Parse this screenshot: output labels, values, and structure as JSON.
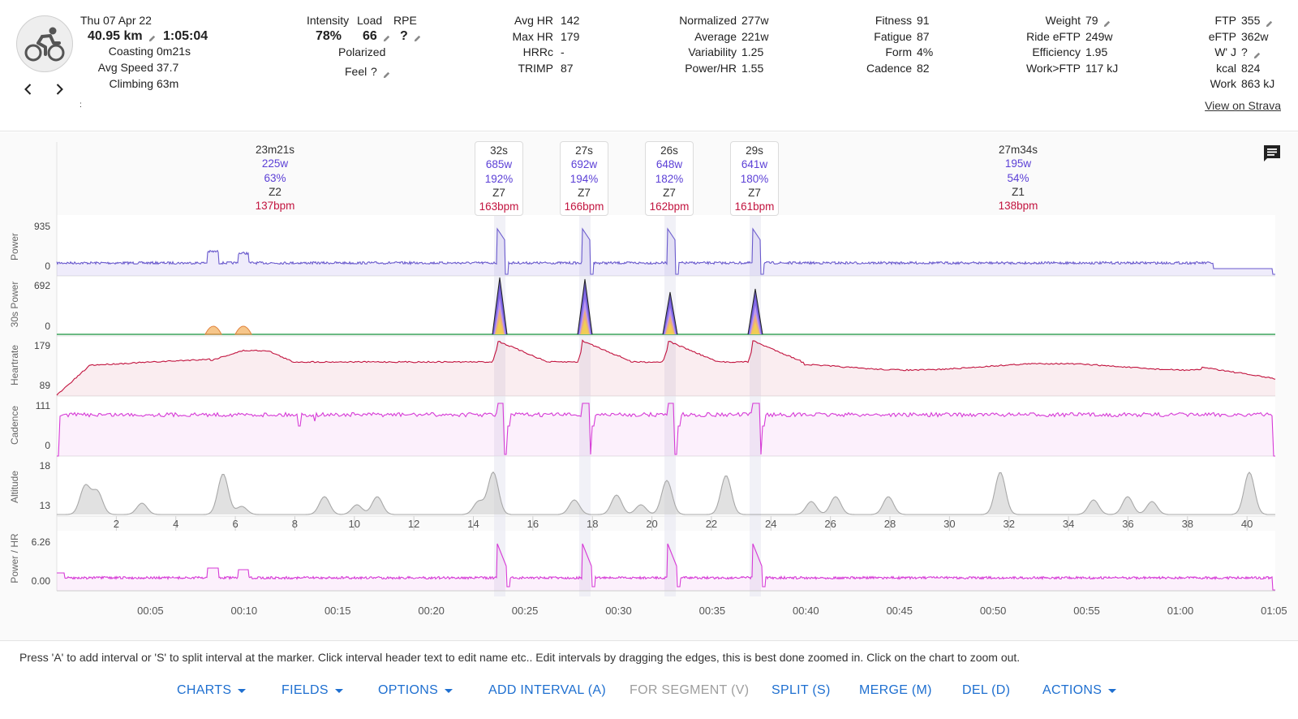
{
  "activity": {
    "date": "Thu 07 Apr 22",
    "distance": "40.95 km",
    "duration": "1:05:04",
    "coasting_label": "Coasting",
    "coasting": "0m21s",
    "avg_speed_label": "Avg Speed",
    "avg_speed": "37.7",
    "climbing_label": "Climbing",
    "climbing": "63m",
    "extra": ":"
  },
  "load": {
    "intensity_label": "Intensity",
    "intensity": "78%",
    "load_label": "Load",
    "load": "66",
    "rpe_label": "RPE",
    "rpe": "?",
    "polarized_label": "Polarized",
    "feel_label": "Feel",
    "feel": "?"
  },
  "heart": {
    "avg_hr_label": "Avg HR",
    "avg_hr": "142",
    "max_hr_label": "Max HR",
    "max_hr": "179",
    "hrrc_label": "HRRc",
    "hrrc": "-",
    "trimp_label": "TRIMP",
    "trimp": "87"
  },
  "power": {
    "normalized_label": "Normalized",
    "normalized": "277w",
    "average_label": "Average",
    "average": "221w",
    "variability_label": "Variability",
    "variability": "1.25",
    "power_hr_label": "Power/HR",
    "power_hr": "1.55"
  },
  "fitness": {
    "fitness_label": "Fitness",
    "fitness": "91",
    "fatigue_label": "Fatigue",
    "fatigue": "87",
    "form_label": "Form",
    "form": "4%",
    "cadence_label": "Cadence",
    "cadence": "82"
  },
  "efficiency": {
    "weight_label": "Weight",
    "weight": "79",
    "ride_eftp_label": "Ride eFTP",
    "ride_eftp": "249w",
    "efficiency_label": "Efficiency",
    "efficiency": "1.95",
    "work_ftp_label": "Work>FTP",
    "work_ftp": "117 kJ"
  },
  "ftp": {
    "ftp_label": "FTP",
    "ftp": "355",
    "eftp_label": "eFTP",
    "eftp": "362w",
    "wprime_label": "W' J",
    "wprime": "?",
    "kcal_label": "kcal",
    "kcal": "824",
    "work_label": "Work",
    "work": "863 kJ"
  },
  "strava_link": "View on Strava",
  "intervals": [
    {
      "duration": "23m21s",
      "power": "225w",
      "pct": "63%",
      "zone": "Z2",
      "hr": "137bpm",
      "boxed": false
    },
    {
      "duration": "32s",
      "power": "685w",
      "pct": "192%",
      "zone": "Z7",
      "hr": "163bpm",
      "boxed": true
    },
    {
      "duration": "27s",
      "power": "692w",
      "pct": "194%",
      "zone": "Z7",
      "hr": "166bpm",
      "boxed": true
    },
    {
      "duration": "26s",
      "power": "648w",
      "pct": "182%",
      "zone": "Z7",
      "hr": "162bpm",
      "boxed": true
    },
    {
      "duration": "29s",
      "power": "641w",
      "pct": "180%",
      "zone": "Z7",
      "hr": "161bpm",
      "boxed": true
    },
    {
      "duration": "27m34s",
      "power": "195w",
      "pct": "54%",
      "zone": "Z1",
      "hr": "138bpm",
      "boxed": false
    }
  ],
  "panels": [
    {
      "label": "Power",
      "max": "935",
      "min": "0"
    },
    {
      "label": "30s Power",
      "max": "692",
      "min": "0"
    },
    {
      "label": "Heartrate",
      "max": "179",
      "min": "89"
    },
    {
      "label": "Cadence",
      "max": "111",
      "min": "0"
    },
    {
      "label": "Altitude",
      "max": "18",
      "min": "13"
    },
    {
      "label": "Power / HR",
      "max": "6.26",
      "min": "0.00"
    }
  ],
  "distance_ticks": [
    "2",
    "4",
    "6",
    "8",
    "10",
    "12",
    "14",
    "16",
    "18",
    "20",
    "22",
    "24",
    "26",
    "28",
    "30",
    "32",
    "34",
    "36",
    "38",
    "40"
  ],
  "time_ticks": [
    "00:05",
    "00:10",
    "00:15",
    "00:20",
    "00:25",
    "00:30",
    "00:35",
    "00:40",
    "00:45",
    "00:50",
    "00:55",
    "01:00",
    "01:05"
  ],
  "hint": "Press 'A' to add interval or 'S' to split interval at the marker. Click interval header text to edit name etc.. Edit intervals by dragging the edges, this is best done zoomed in. Click on the chart to zoom out.",
  "toolbar": {
    "charts": "CHARTS",
    "fields": "FIELDS",
    "options": "OPTIONS",
    "add_interval": "ADD INTERVAL (A)",
    "for_segment": "FOR SEGMENT (V)",
    "split": "SPLIT (S)",
    "merge": "MERGE (M)",
    "del": "DEL (D)",
    "actions": "ACTIONS"
  },
  "colors": {
    "power": "#6a5acd",
    "heartrate": "#c2143f",
    "cadence": "#d63ad6",
    "altitude": "#bdbdbd",
    "power_hr": "#d63ad6",
    "link": "#1e6fd0"
  }
}
